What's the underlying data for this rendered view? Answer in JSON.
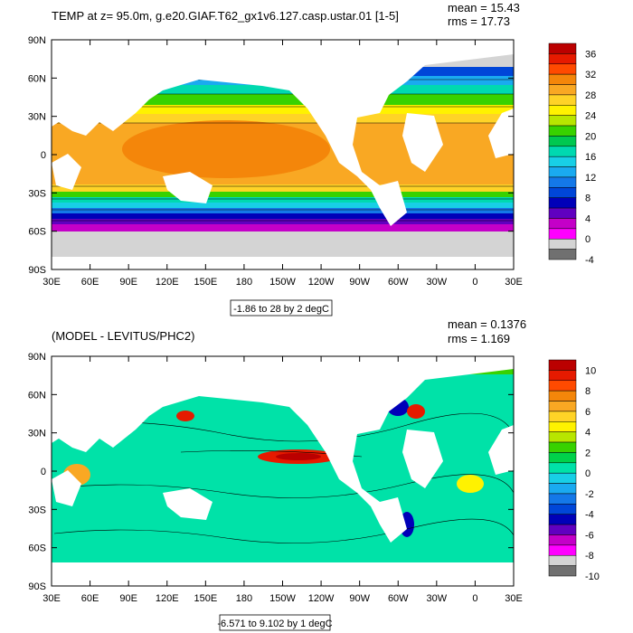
{
  "chart_data": [
    {
      "type": "heatmap",
      "title": "TEMP at z=  95.0m, g.e20.GIAF.T62_gx1v6.127.casp.ustar.01 [1-5]",
      "stats": [
        "mean = 15.43",
        "rms = 17.73"
      ],
      "x_ticks": [
        "30E",
        "60E",
        "90E",
        "120E",
        "150E",
        "180",
        "150W",
        "120W",
        "90W",
        "60W",
        "30W",
        "0",
        "30E"
      ],
      "y_ticks": [
        "90N",
        "60N",
        "30N",
        "0",
        "30S",
        "60S",
        "90S"
      ],
      "range_label": "-1.86 to 28 by 2 degC",
      "colorbar": {
        "labels": [
          "36",
          "32",
          "28",
          "24",
          "20",
          "16",
          "12",
          "8",
          "4",
          "0",
          "-4"
        ],
        "colors": [
          "#bb0000",
          "#e61a00",
          "#ff4a00",
          "#f4860a",
          "#f9a823",
          "#ffd327",
          "#fff200",
          "#b8e600",
          "#38d200",
          "#00c850",
          "#00d9b0",
          "#18cfe6",
          "#1aaaf0",
          "#1478e8",
          "#0046d8",
          "#0000b8",
          "#6000c0",
          "#c400c8",
          "#ff00ff",
          "#d4d4d4",
          "#707070"
        ]
      }
    },
    {
      "type": "heatmap",
      "title": "(MODEL - LEVITUS/PHC2)",
      "stats": [
        "mean = 0.1376",
        "rms = 1.169"
      ],
      "x_ticks": [
        "30E",
        "60E",
        "90E",
        "120E",
        "150E",
        "180",
        "150W",
        "120W",
        "90W",
        "60W",
        "30W",
        "0",
        "30E"
      ],
      "y_ticks": [
        "90N",
        "60N",
        "30N",
        "0",
        "30S",
        "60S",
        "90S"
      ],
      "range_label": "-6.571 to 9.102 by 1 degC",
      "colorbar": {
        "labels": [
          "10",
          "8",
          "6",
          "4",
          "2",
          "0",
          "-2",
          "-4",
          "-6",
          "-8",
          "-10"
        ],
        "colors": [
          "#bb0000",
          "#e61a00",
          "#ff4a00",
          "#f4860a",
          "#f9a823",
          "#ffd327",
          "#fff200",
          "#b8e600",
          "#38d200",
          "#00d24a",
          "#00e2a8",
          "#18cfe6",
          "#1aaaf0",
          "#1478e8",
          "#0046d8",
          "#0000b8",
          "#6000c0",
          "#c400c8",
          "#ff00ff",
          "#d4d4d4",
          "#707070"
        ]
      }
    }
  ]
}
